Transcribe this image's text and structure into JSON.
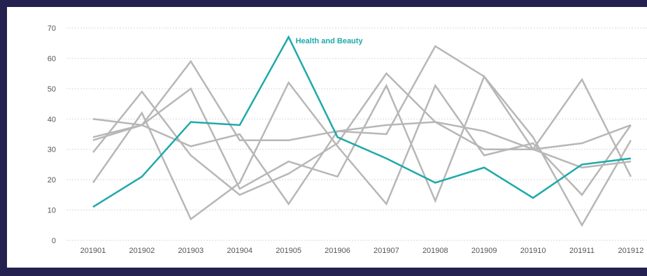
{
  "chart_data": {
    "type": "line",
    "title": "",
    "xlabel": "",
    "ylabel": "",
    "categories": [
      "201901",
      "201902",
      "201903",
      "201904",
      "201905",
      "201906",
      "201907",
      "201908",
      "201909",
      "201910",
      "201911",
      "201912"
    ],
    "ylim": [
      0,
      70
    ],
    "yticks": [
      0,
      10,
      20,
      30,
      40,
      50,
      60,
      70
    ],
    "grid": true,
    "legend": "none",
    "colors": {
      "highlight": "#1fa9a9",
      "other": "#b7b7b7"
    },
    "annotation": {
      "text": "Health and Beauty",
      "series_index": 0,
      "category_index": 4
    },
    "series": [
      {
        "name": "Health and Beauty",
        "highlight": true,
        "values": [
          11,
          21,
          39,
          38,
          67,
          34,
          27,
          19,
          24,
          14,
          25,
          27
        ]
      },
      {
        "values": [
          34,
          38,
          50,
          17,
          26,
          21,
          51,
          13,
          54,
          34,
          5,
          33
        ]
      },
      {
        "values": [
          29,
          49,
          28,
          15,
          22,
          32,
          55,
          39,
          36,
          30,
          32,
          38
        ]
      },
      {
        "values": [
          40,
          38,
          31,
          35,
          12,
          36,
          35,
          64,
          54,
          30,
          53,
          21
        ]
      },
      {
        "values": [
          19,
          42,
          7,
          19,
          52,
          31,
          12,
          51,
          28,
          32,
          15,
          38
        ]
      },
      {
        "values": [
          33,
          38,
          59,
          33,
          33,
          36,
          38,
          39,
          30,
          30,
          24,
          26
        ]
      }
    ]
  }
}
